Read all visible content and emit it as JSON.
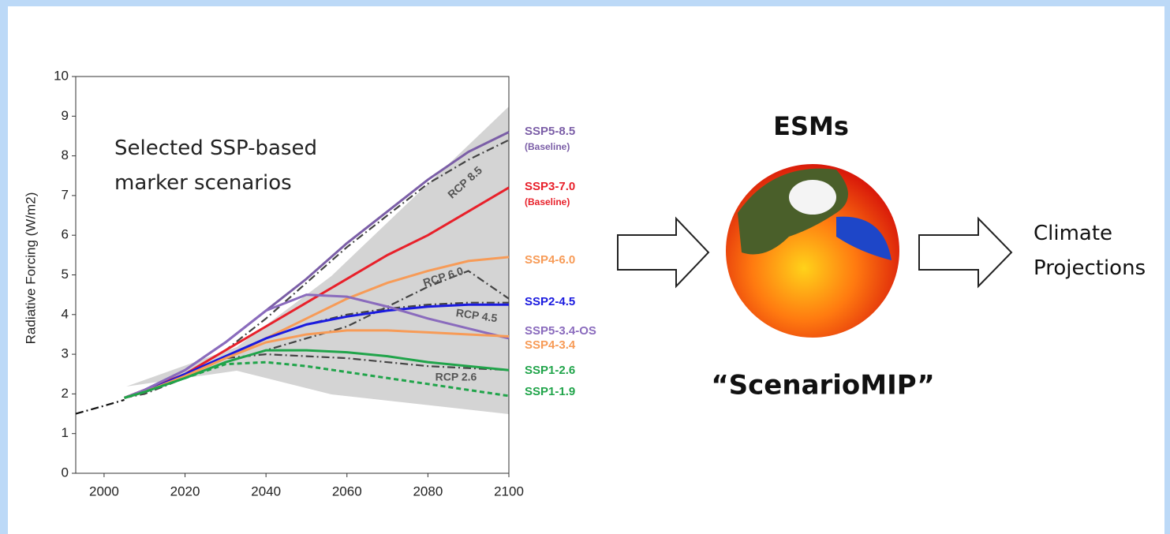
{
  "chart_data": {
    "type": "line",
    "ylabel": "Radiative Forcing (W/m2)",
    "annotation": "Selected SSP-based marker scenarios",
    "x": [
      1993,
      2000,
      2005,
      2010,
      2020,
      2030,
      2040,
      2050,
      2060,
      2070,
      2080,
      2090,
      2100
    ],
    "xlim": [
      1993,
      2100
    ],
    "xticks": [
      2000,
      2020,
      2040,
      2060,
      2080,
      2100
    ],
    "ylim": [
      0,
      10
    ],
    "yticks": [
      0,
      1,
      2,
      3,
      4,
      5,
      6,
      7,
      8,
      9,
      10
    ],
    "series": [
      {
        "name": "SSP5-8.5",
        "note": "(Baseline)",
        "color": "#7b5ea7",
        "line_style": "solid",
        "values": [
          null,
          null,
          1.9,
          2.1,
          2.6,
          3.3,
          4.1,
          4.9,
          5.8,
          6.6,
          7.4,
          8.1,
          8.6
        ]
      },
      {
        "name": "SSP3-7.0",
        "note": "(Baseline)",
        "color": "#e8202a",
        "line_style": "solid",
        "values": [
          null,
          null,
          1.9,
          2.1,
          2.5,
          3.1,
          3.7,
          4.3,
          4.9,
          5.5,
          6.0,
          6.6,
          7.2
        ]
      },
      {
        "name": "SSP4-6.0",
        "color": "#f79b57",
        "line_style": "solid",
        "values": [
          null,
          null,
          1.9,
          2.05,
          2.45,
          2.9,
          3.4,
          3.9,
          4.4,
          4.8,
          5.1,
          5.35,
          5.45
        ]
      },
      {
        "name": "SSP2-4.5",
        "color": "#1a1adf",
        "line_style": "solid",
        "values": [
          null,
          null,
          1.9,
          2.05,
          2.5,
          2.95,
          3.4,
          3.75,
          3.95,
          4.1,
          4.2,
          4.25,
          4.25
        ]
      },
      {
        "name": "SSP5-3.4-OS",
        "color": "#8a6bbd",
        "line_style": "solid",
        "values": [
          null,
          null,
          1.9,
          2.1,
          2.6,
          3.3,
          4.1,
          4.5,
          4.45,
          4.2,
          3.9,
          3.65,
          3.4
        ]
      },
      {
        "name": "SSP4-3.4",
        "color": "#f79b57",
        "line_style": "solid",
        "values": [
          null,
          null,
          1.9,
          2.05,
          2.45,
          2.9,
          3.3,
          3.5,
          3.6,
          3.6,
          3.55,
          3.5,
          3.45
        ]
      },
      {
        "name": "SSP1-2.6",
        "color": "#20a44a",
        "line_style": "solid",
        "values": [
          null,
          null,
          1.9,
          2.05,
          2.4,
          2.8,
          3.1,
          3.1,
          3.05,
          2.95,
          2.8,
          2.7,
          2.6
        ]
      },
      {
        "name": "SSP1-1.9",
        "color": "#20a44a",
        "line_style": "dashed",
        "values": [
          null,
          null,
          1.9,
          2.05,
          2.4,
          2.75,
          2.8,
          2.7,
          2.55,
          2.4,
          2.25,
          2.1,
          1.95
        ]
      },
      {
        "name": "RCP 8.5",
        "color": "#444444",
        "line_style": "dashdot",
        "values": [
          null,
          null,
          1.9,
          2.1,
          2.5,
          3.1,
          3.9,
          4.8,
          5.7,
          6.5,
          7.3,
          7.9,
          8.4
        ]
      },
      {
        "name": "RCP 6.0",
        "color": "#444444",
        "line_style": "dashdot",
        "values": [
          null,
          null,
          1.9,
          2.0,
          2.4,
          2.8,
          3.1,
          3.4,
          3.7,
          4.2,
          4.7,
          5.1,
          4.4
        ]
      },
      {
        "name": "RCP 4.5",
        "color": "#444444",
        "line_style": "dashdot",
        "values": [
          null,
          null,
          1.9,
          2.05,
          2.5,
          2.95,
          3.4,
          3.75,
          4.0,
          4.15,
          4.25,
          4.3,
          4.3
        ]
      },
      {
        "name": "RCP 2.6",
        "color": "#444444",
        "line_style": "dashdot",
        "values": [
          null,
          null,
          1.9,
          2.05,
          2.45,
          2.9,
          3.0,
          2.95,
          2.9,
          2.8,
          2.7,
          2.65,
          2.6
        ]
      },
      {
        "color": "#111111",
        "line_style": "dashdot",
        "values": [
          1.5,
          1.7,
          1.85,
          null,
          null,
          null,
          null,
          null,
          null,
          null,
          null,
          null,
          null
        ]
      }
    ]
  },
  "diagram": {
    "model": "ESMs",
    "project": "“ScenarioMIP”",
    "output": "Climate Projections"
  }
}
